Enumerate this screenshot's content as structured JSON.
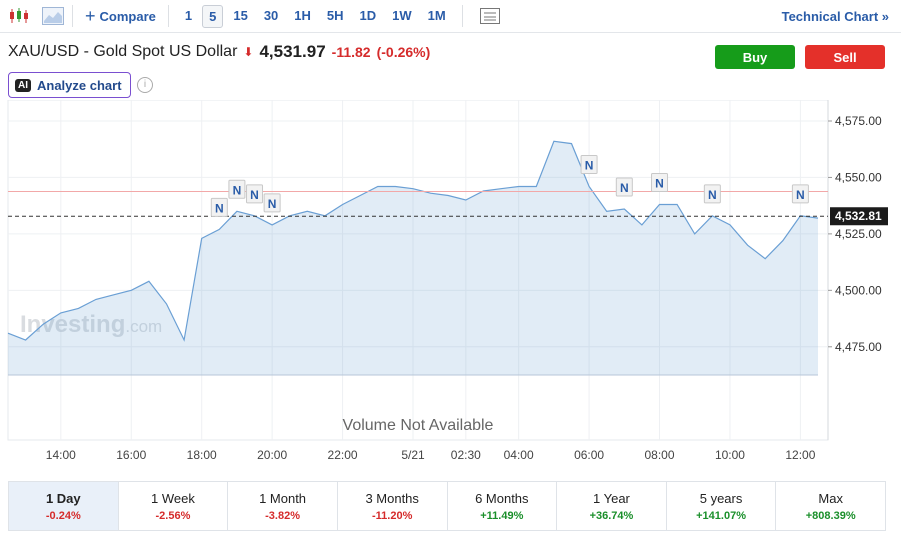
{
  "toolbar": {
    "compare": "Compare",
    "intervals": [
      "1",
      "5",
      "15",
      "30",
      "1H",
      "5H",
      "1D",
      "1W",
      "1M"
    ],
    "selected_interval": "5",
    "technical_chart": "Technical Chart »"
  },
  "header": {
    "title": "XAU/USD - Gold Spot US Dollar",
    "price": "4,531.97",
    "change": "-11.82",
    "change_percent": "(-0.26%)",
    "buy": "Buy",
    "sell": "Sell",
    "ai_badge": "AI",
    "analyze": "Analyze chart"
  },
  "chart_data": {
    "type": "area",
    "color": "#6a9fd4",
    "categories": [
      null,
      null,
      null,
      "14:00",
      null,
      null,
      null,
      "16:00",
      null,
      null,
      null,
      "18:00",
      null,
      null,
      null,
      "20:00",
      null,
      null,
      null,
      "22:00",
      null,
      null,
      null,
      "5/21",
      null,
      null,
      "02:30",
      null,
      null,
      "04:00",
      null,
      null,
      null,
      "06:00",
      null,
      null,
      null,
      "08:00",
      null,
      null,
      null,
      "10:00",
      null,
      null,
      null,
      "12:00",
      null
    ],
    "values": [
      4481,
      4478,
      4485,
      4490,
      4492,
      4496,
      4498,
      4500,
      4504,
      4494,
      4478,
      4523,
      4527,
      4535,
      4533,
      4529,
      4533,
      4535,
      4533,
      4538,
      4542,
      4546,
      4546,
      4545,
      4543,
      4542,
      4540,
      4544,
      4545,
      4546,
      4546,
      4566,
      4565,
      4546,
      4535,
      4536,
      4529,
      4538,
      4538,
      4525,
      4533,
      4529,
      4520,
      4514,
      4522,
      4533,
      4532
    ],
    "ylim": [
      4462.5,
      4580
    ],
    "yticks": [
      {
        "value": 4475,
        "label": "4,475.00"
      },
      {
        "value": 4500,
        "label": "4,500.00"
      },
      {
        "value": 4525,
        "label": "4,525.00"
      },
      {
        "value": 4550,
        "label": "4,550.00"
      },
      {
        "value": 4575,
        "label": "4,575.00"
      }
    ],
    "grid": true,
    "reference_line": 4543.79,
    "current_price": {
      "value": 4532.81,
      "label": "4,532.81"
    },
    "news_markers": [
      {
        "label": "N",
        "category_index": 12
      },
      {
        "label": "N",
        "category_index": 13
      },
      {
        "label": "N",
        "category_index": 14
      },
      {
        "label": "N",
        "category_index": 15
      },
      {
        "label": "N",
        "category_index": 33
      },
      {
        "label": "N",
        "category_index": 35
      },
      {
        "label": "N",
        "category_index": 37
      },
      {
        "label": "N",
        "category_index": 40
      },
      {
        "label": "N",
        "category_index": 45
      }
    ],
    "watermark": "Investing",
    "watermark_suffix": ".com",
    "volume_note": "Volume Not Available"
  },
  "periods": [
    {
      "label": "1 Day",
      "change": "-0.24%"
    },
    {
      "label": "1 Week",
      "change": "-2.56%"
    },
    {
      "label": "1 Month",
      "change": "-3.82%"
    },
    {
      "label": "3 Months",
      "change": "-11.20%"
    },
    {
      "label": "6 Months",
      "change": "+11.49%"
    },
    {
      "label": "1 Year",
      "change": "+36.74%"
    },
    {
      "label": "5 years",
      "change": "+141.07%"
    },
    {
      "label": "Max",
      "change": "+808.39%"
    }
  ]
}
